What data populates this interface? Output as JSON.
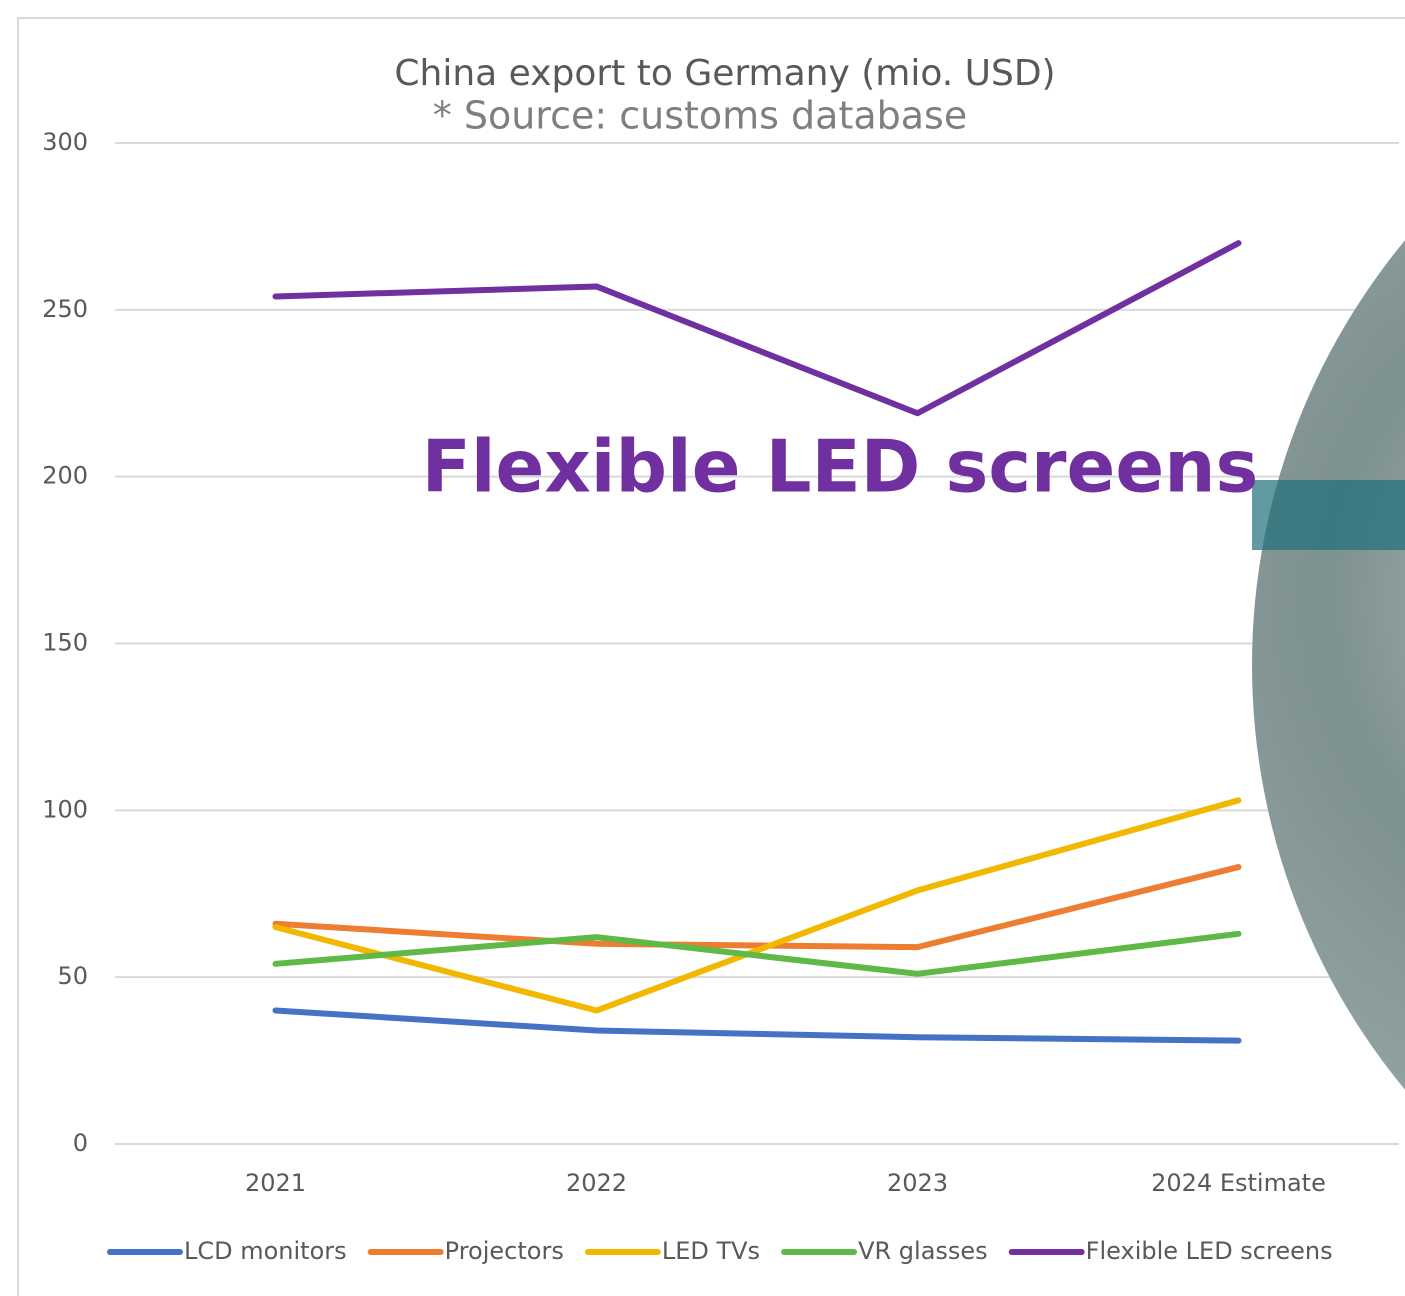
{
  "chart_data": {
    "type": "line",
    "title": "China export to Germany (mio. USD)",
    "subtitle": "* Source: customs database",
    "annotation": "Flexible LED screens",
    "categories": [
      "2021",
      "2022",
      "2023",
      "2024 Estimate"
    ],
    "series": [
      {
        "name": "LCD monitors",
        "color": "#4472c4",
        "values": [
          40,
          34,
          32,
          31
        ]
      },
      {
        "name": "Projectors",
        "color": "#ed7d31",
        "values": [
          66,
          60,
          59,
          83
        ]
      },
      {
        "name": "LED TVs",
        "color": "#f2b800",
        "values": [
          65,
          40,
          76,
          103
        ]
      },
      {
        "name": "VR glasses",
        "color": "#5fb946",
        "values": [
          54,
          62,
          51,
          63
        ]
      },
      {
        "name": "Flexible LED screens",
        "color": "#7030a0",
        "values": [
          254,
          257,
          219,
          270
        ]
      }
    ],
    "ylim": [
      0,
      300
    ],
    "yticks": [
      0,
      50,
      100,
      150,
      200,
      250,
      300
    ],
    "grid": true,
    "legend": "bottom"
  }
}
